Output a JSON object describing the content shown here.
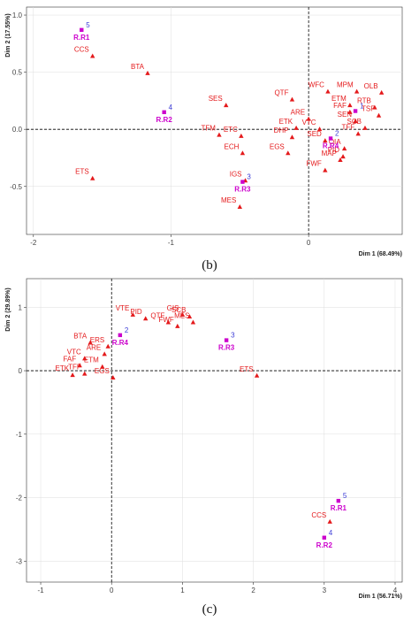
{
  "chart_data": [
    {
      "type": "scatter",
      "panel_label": "(b)",
      "xlabel": "Dim 1 (68.49%)",
      "ylabel": "Dim 2 (17.55%)",
      "xlim": [
        -2.05,
        0.68
      ],
      "ylim": [
        -0.92,
        1.07
      ],
      "xticks": [
        "-2",
        "-1",
        "0"
      ],
      "xtick_values": [
        -2,
        -1,
        0
      ],
      "yticks": [
        "1.0",
        "0.5",
        "0.0",
        "-0.5"
      ],
      "ytick_values": [
        1.0,
        0.5,
        0.0,
        -0.5
      ],
      "grid": "on",
      "colors": {
        "variables": "#e41a1c",
        "rows": "#cc00cc",
        "row_numbers": "#3b3bd6"
      },
      "series": [
        {
          "points": [
            {
              "label": "CCS",
              "x": -1.57,
              "y": 0.64
            },
            {
              "label": "BTA",
              "x": -1.17,
              "y": 0.49
            },
            {
              "label": "SES",
              "x": -0.6,
              "y": 0.21
            },
            {
              "label": "QTF",
              "x": -0.12,
              "y": 0.26
            },
            {
              "label": "WFC",
              "x": 0.14,
              "y": 0.33
            },
            {
              "label": "MPM",
              "x": 0.35,
              "y": 0.33
            },
            {
              "label": "OLB",
              "x": 0.53,
              "y": 0.32
            },
            {
              "label": "RTB",
              "x": 0.48,
              "y": 0.19
            },
            {
              "label": "ETM",
              "x": 0.3,
              "y": 0.21
            },
            {
              "label": "FAF",
              "x": 0.3,
              "y": 0.15
            },
            {
              "label": "TSP",
              "x": 0.51,
              "y": 0.12
            },
            {
              "label": "ARE",
              "x": 0.0,
              "y": 0.09
            },
            {
              "label": "SEN",
              "x": 0.34,
              "y": 0.07
            },
            {
              "label": "SCB",
              "x": 0.41,
              "y": 0.01
            },
            {
              "label": "ETK",
              "x": -0.09,
              "y": 0.01
            },
            {
              "label": "VTC",
              "x": 0.08,
              "y": 0.0
            },
            {
              "label": "TFF",
              "x": 0.36,
              "y": -0.04
            },
            {
              "label": "TFM",
              "x": -0.65,
              "y": -0.05
            },
            {
              "label": "ETC",
              "x": -0.49,
              "y": -0.06
            },
            {
              "label": "DHP",
              "x": -0.12,
              "y": -0.07
            },
            {
              "label": "SED",
              "x": 0.12,
              "y": -0.1
            },
            {
              "label": "OIA",
              "x": 0.26,
              "y": -0.17
            },
            {
              "label": "EGS",
              "x": -0.15,
              "y": -0.21
            },
            {
              "label": "PID",
              "x": 0.25,
              "y": -0.24
            },
            {
              "label": "ECH",
              "x": -0.48,
              "y": -0.21
            },
            {
              "label": "MAP",
              "x": 0.23,
              "y": -0.27
            },
            {
              "label": "FWF",
              "x": 0.12,
              "y": -0.36
            },
            {
              "label": "ETS",
              "x": -1.57,
              "y": -0.43
            },
            {
              "label": "IGS",
              "x": -0.46,
              "y": -0.45
            },
            {
              "label": "MES",
              "x": -0.5,
              "y": -0.68
            }
          ]
        },
        {
          "points": [
            {
              "label": "R.R1",
              "number": "5",
              "x": -1.65,
              "y": 0.87
            },
            {
              "label": "R.R2",
              "number": "4",
              "x": -1.05,
              "y": 0.15
            },
            {
              "label": "R.R3",
              "number": "3",
              "x": -0.48,
              "y": -0.46
            },
            {
              "label": "R.R4",
              "number": "2",
              "x": 0.16,
              "y": -0.08
            },
            {
              "label": "",
              "number": "1",
              "x": 0.34,
              "y": 0.16
            }
          ]
        }
      ]
    },
    {
      "type": "scatter",
      "panel_label": "(c)",
      "xlabel": "Dim 1 (56.71%)",
      "ylabel": "Dim 2 (29.89%)",
      "xlim": [
        -1.2,
        4.1
      ],
      "ylim": [
        -3.33,
        1.45
      ],
      "xticks": [
        "-1",
        "0",
        "1",
        "2",
        "3",
        "4"
      ],
      "xtick_values": [
        -1,
        0,
        1,
        2,
        3,
        4
      ],
      "yticks": [
        "1",
        "0",
        "-1",
        "-2",
        "-3"
      ],
      "ytick_values": [
        1,
        0,
        -1,
        -2,
        -3
      ],
      "grid": "on",
      "colors": {
        "variables": "#e41a1c",
        "rows": "#cc00cc",
        "row_numbers": "#3b3bd6"
      },
      "series": [
        {
          "points": [
            {
              "label": "VTE",
              "x": 0.3,
              "y": 0.88
            },
            {
              "label": "PID",
              "x": 0.48,
              "y": 0.82
            },
            {
              "label": "GIS",
              "x": 1.0,
              "y": 0.88
            },
            {
              "label": "SCB",
              "x": 1.1,
              "y": 0.85
            },
            {
              "label": "QTF",
              "x": 0.8,
              "y": 0.76
            },
            {
              "label": "MES",
              "x": 1.15,
              "y": 0.76
            },
            {
              "label": "FWF",
              "x": 0.93,
              "y": 0.7
            },
            {
              "label": "BTA",
              "x": -0.3,
              "y": 0.44
            },
            {
              "label": "ERS",
              "x": -0.05,
              "y": 0.38
            },
            {
              "label": "ARE",
              "x": -0.1,
              "y": 0.26
            },
            {
              "label": "VTC",
              "x": -0.38,
              "y": 0.19
            },
            {
              "label": "FAF",
              "x": -0.45,
              "y": 0.08
            },
            {
              "label": "ETM",
              "x": -0.13,
              "y": 0.06
            },
            {
              "label": "ETK",
              "x": -0.55,
              "y": -0.07
            },
            {
              "label": "TFF",
              "x": -0.38,
              "y": -0.05
            },
            {
              "label": "EGS",
              "x": 0.02,
              "y": -0.11
            },
            {
              "label": "ETS",
              "x": 2.05,
              "y": -0.08
            },
            {
              "label": "CCS",
              "x": 3.08,
              "y": -2.38
            }
          ]
        },
        {
          "points": [
            {
              "label": "R.R4",
              "number": "2",
              "x": 0.12,
              "y": 0.56
            },
            {
              "label": "R.R3",
              "number": "3",
              "x": 1.62,
              "y": 0.48
            },
            {
              "label": "R.R1",
              "number": "5",
              "x": 3.2,
              "y": -2.05
            },
            {
              "label": "R.R2",
              "number": "4",
              "x": 3.0,
              "y": -2.63
            }
          ]
        }
      ]
    }
  ]
}
